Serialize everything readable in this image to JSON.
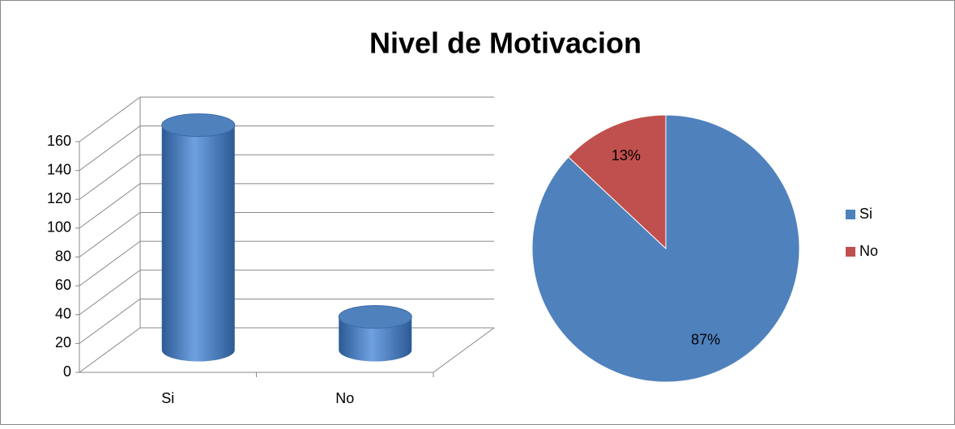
{
  "chart_data": [
    {
      "type": "bar3d",
      "title": "Nivel de Motivacion",
      "categories": [
        "Si",
        "No"
      ],
      "values": [
        156,
        23
      ],
      "color": "#4f81bd",
      "ylim": [
        0,
        160
      ],
      "yticks": [
        0,
        20,
        40,
        60,
        80,
        100,
        120,
        140,
        160
      ],
      "grid": true
    },
    {
      "type": "pie",
      "categories": [
        "Si",
        "No"
      ],
      "values": [
        87,
        13
      ],
      "value_labels": [
        "87%",
        "13%"
      ],
      "colors": [
        "#4f81bd",
        "#c0504d"
      ],
      "legend": "right"
    }
  ]
}
